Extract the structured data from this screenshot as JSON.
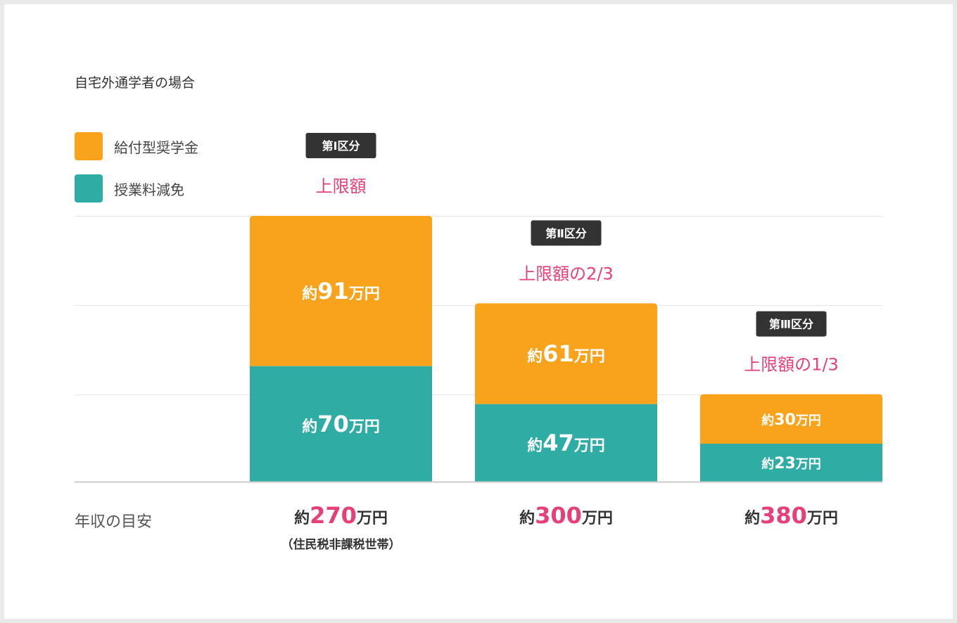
{
  "subtitle": "自宅外通学者の場合",
  "legend": [
    {
      "label": "給付型奨学金",
      "color": "#F9A31D"
    },
    {
      "label": "授業料減免",
      "color": "#2FADA5"
    }
  ],
  "colors": {
    "scholarship": "#F9A31D",
    "tuition": "#2FADA5",
    "accent": "#E63F7A",
    "badge_bg": "#333333",
    "grid": "#e6e6e6",
    "axis": "#cccccc"
  },
  "chart_data": {
    "type": "bar",
    "stacked": true,
    "x_axis_label": "年収の目安",
    "categories": [
      "約270万円",
      "約300万円",
      "約380万円"
    ],
    "category_parts": [
      {
        "prefix": "約",
        "value": "270",
        "suffix": "万円",
        "note": "（住民税非課税世帯）"
      },
      {
        "prefix": "約",
        "value": "300",
        "suffix": "万円",
        "note": ""
      },
      {
        "prefix": "約",
        "value": "380",
        "suffix": "万円",
        "note": ""
      }
    ],
    "badges": [
      "第Ⅰ区分",
      "第Ⅱ区分",
      "第Ⅲ区分"
    ],
    "descriptions": [
      "上限額",
      "上限額の2/3",
      "上限額の1/3"
    ],
    "series": [
      {
        "name": "授業料減免",
        "values": [
          70,
          47,
          23
        ],
        "labels": [
          "約70万円",
          "約47万円",
          "約23万円"
        ]
      },
      {
        "name": "給付型奨学金",
        "values": [
          91,
          61,
          30
        ],
        "labels": [
          "約91万円",
          "約61万円",
          "約30万円"
        ]
      }
    ],
    "unit": "万円",
    "grid": true,
    "legend_position": "top-left"
  }
}
